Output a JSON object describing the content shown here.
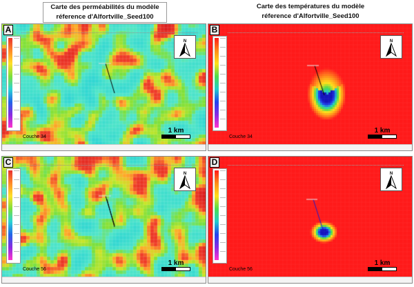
{
  "titles": {
    "left": {
      "line1": "Carte des perméabilités du modèle",
      "line2": "réference d'Alfortville_Seed100"
    },
    "right": {
      "line1": "Carte des températures du modèle",
      "line2": "réference d'Alfortville_Seed100"
    }
  },
  "panels": [
    {
      "id": "A",
      "type": "permeability",
      "layer_label": "Couche 34",
      "scale_label": "1 km",
      "north_label": "N"
    },
    {
      "id": "B",
      "type": "temperature",
      "layer_label": "Couche 34",
      "scale_label": "1 km",
      "north_label": "N"
    },
    {
      "id": "C",
      "type": "permeability",
      "layer_label": "Couche 56",
      "scale_label": "1 km",
      "north_label": "N"
    },
    {
      "id": "D",
      "type": "temperature",
      "layer_label": "Couche 56",
      "scale_label": "1 km",
      "north_label": "N"
    }
  ],
  "colors": {
    "hot": "#ff1a1a",
    "cold": "#1a1acc",
    "mid_green": "#44dd66",
    "cyan": "#44e8e8",
    "orange": "#ff8c1a",
    "well": "#000000"
  }
}
